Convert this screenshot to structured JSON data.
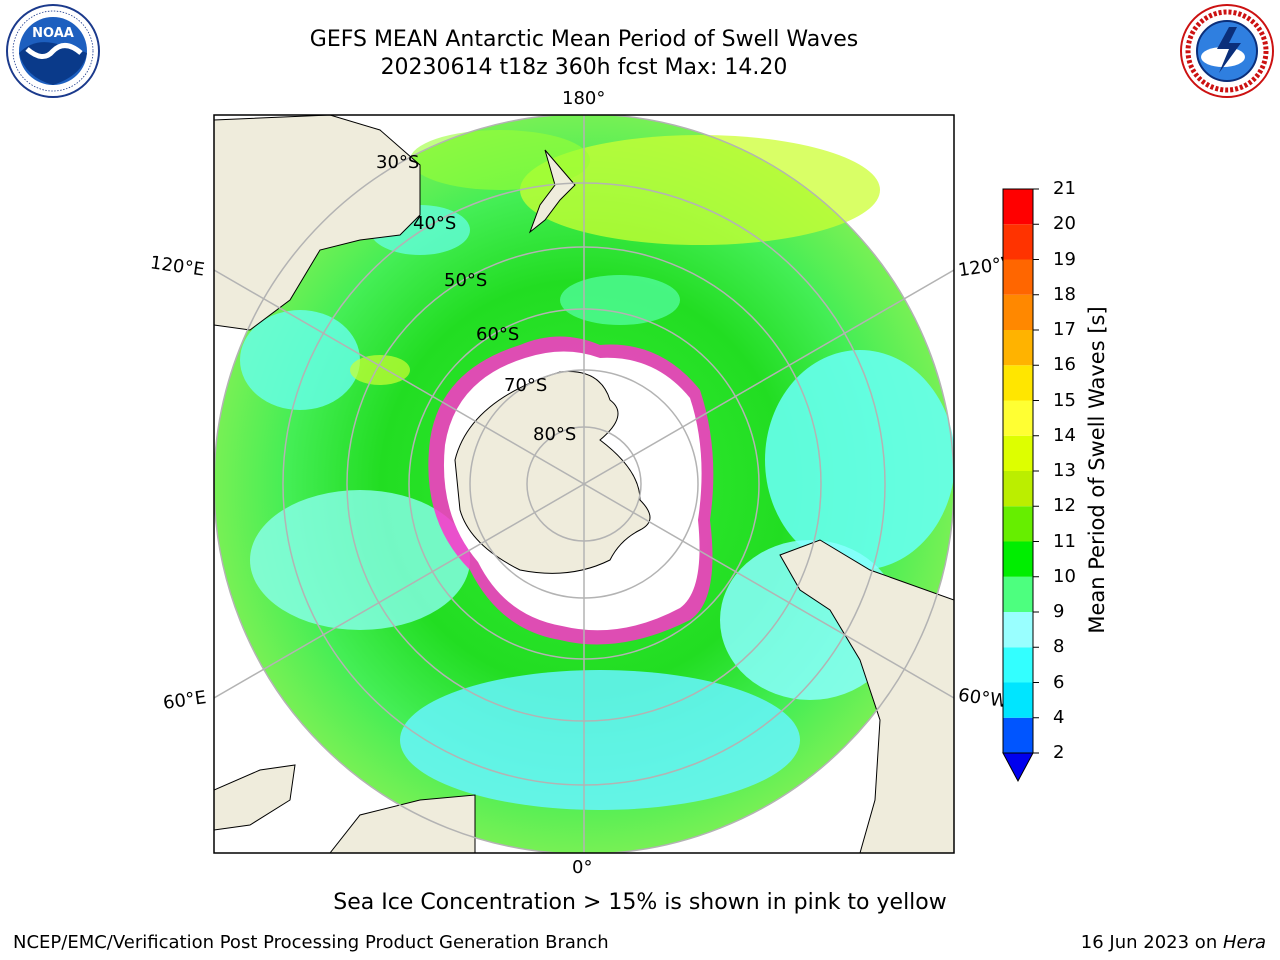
{
  "header": {
    "title_line1": "GEFS MEAN Antarctic Mean Period of Swell Waves",
    "title_line2": "20230614 t18z 360h fcst   Max: 14.20"
  },
  "logos": {
    "noaa": {
      "text": "NOAA",
      "ring_text": "NATIONAL OCEANIC AND ATMOSPHERIC ADMINISTRATION · U.S. DEPARTMENT OF COMMERCE ·"
    },
    "nws": {
      "ring_text": "NATIONAL WEATHER SERVICE"
    }
  },
  "map": {
    "projection": "south-polar-stereographic",
    "lon_labels": {
      "top": "180°",
      "upper_left": "120°E",
      "upper_right": "120°W",
      "lower_left": "60°E",
      "lower_right": "60°W",
      "bottom": "0°"
    },
    "lat_labels": [
      "30°S",
      "40°S",
      "50°S",
      "60°S",
      "70°S",
      "80°S"
    ],
    "colors": {
      "land": "#efecdc",
      "ice_shelf": "#ffffff",
      "sea_ice_low": "#ff33cc",
      "sea_ice_high": "#ffd21e",
      "grid": "#b3b3b3"
    }
  },
  "colorbar": {
    "title": "Mean Period of Swell Waves [s]",
    "ticks": [
      "2",
      "4",
      "6",
      "8",
      "9",
      "10",
      "11",
      "12",
      "13",
      "14",
      "15",
      "16",
      "17",
      "18",
      "19",
      "20",
      "21"
    ],
    "colors": [
      "#0055ff",
      "#00e5ff",
      "#33ffff",
      "#99ffff",
      "#4dff7f",
      "#00ee00",
      "#66ee00",
      "#bbee00",
      "#ddff00",
      "#ffff33",
      "#ffe600",
      "#ffb300",
      "#ff8800",
      "#ff6600",
      "#ff3300",
      "#ff0000"
    ],
    "extend_color": "#0000ee"
  },
  "caption": "Sea Ice Concentration > 15% is shown in pink to yellow",
  "footer": {
    "left": "NCEP/EMC/Verification Post Processing Product Generation Branch",
    "right_date": "16 Jun 2023 on ",
    "right_host": "Hera"
  }
}
